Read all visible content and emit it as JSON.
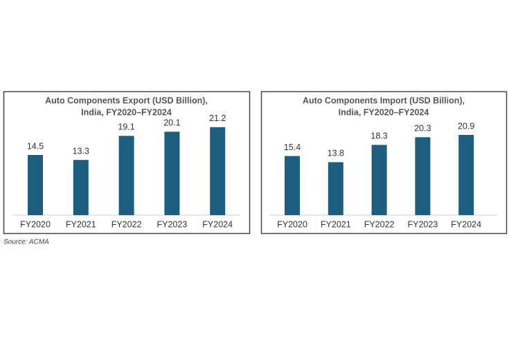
{
  "chart_data": [
    {
      "type": "bar",
      "title": [
        "Auto Components Export (USD Billion),",
        "India, FY2020–FY2024"
      ],
      "categories": [
        "FY2020",
        "FY2021",
        "FY2022",
        "FY2023",
        "FY2024"
      ],
      "values": [
        14.5,
        13.3,
        19.1,
        20.1,
        21.2
      ],
      "color": "#1d5e7e"
    },
    {
      "type": "bar",
      "title": [
        "Auto Components Import (USD Billion),",
        "India, FY2020–FY2024"
      ],
      "categories": [
        "FY2020",
        "FY2021",
        "FY2022",
        "FY2023",
        "FY2024"
      ],
      "values": [
        15.4,
        13.8,
        18.3,
        20.3,
        20.9
      ],
      "color": "#1d5e7e"
    }
  ],
  "source": "Source: ACMA"
}
